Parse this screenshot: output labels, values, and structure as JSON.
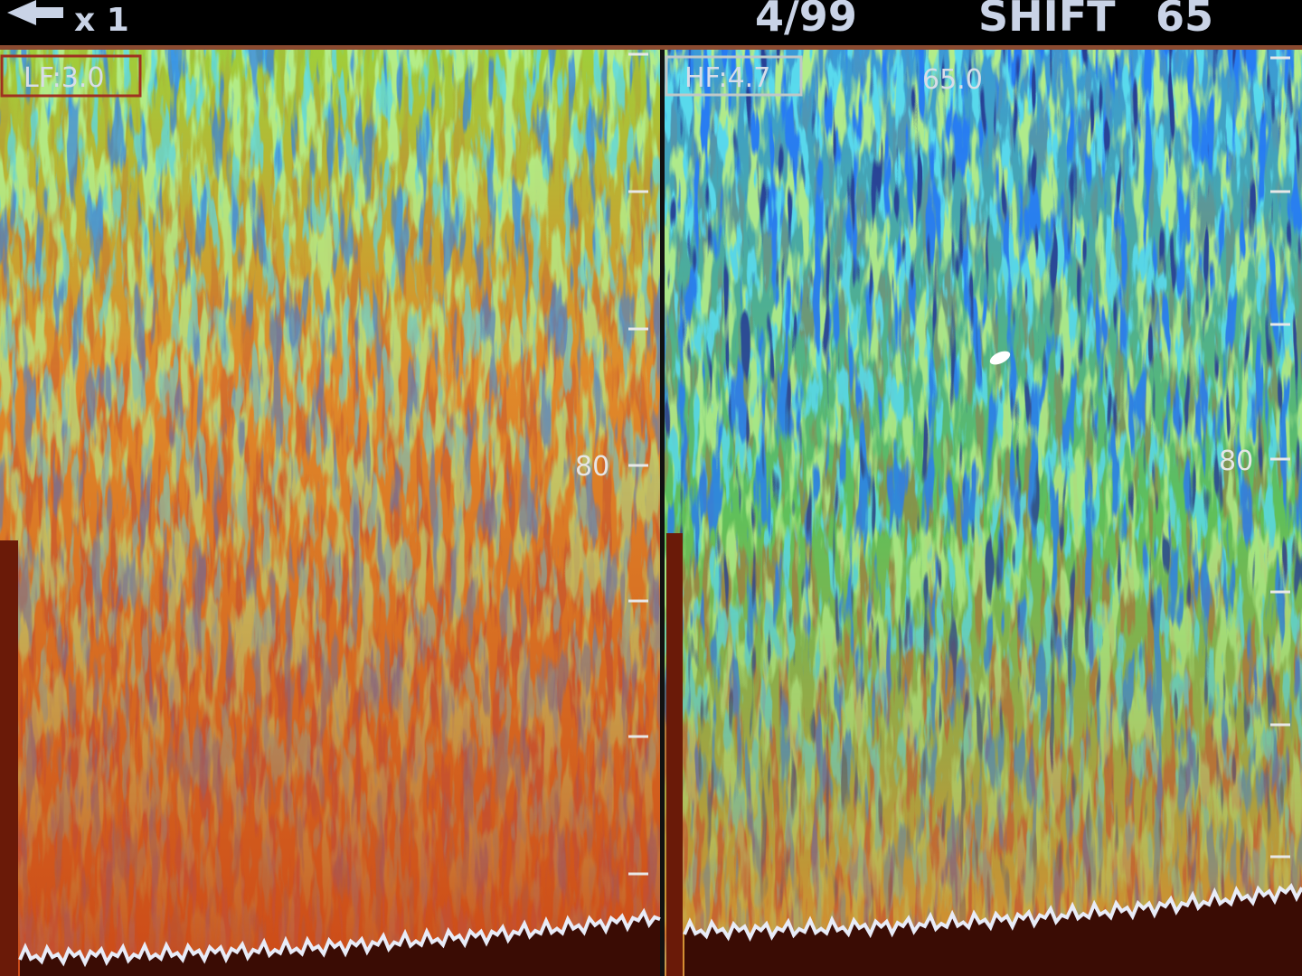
{
  "header": {
    "zoom": "x 1",
    "page": "4/99",
    "shift_label": "SHIFT",
    "shift_value": "65"
  },
  "panels": [
    {
      "label": "LF:3.0",
      "depth_label": "80"
    },
    {
      "label": "HF:4.7",
      "marker": "65.0",
      "depth_label": "80"
    }
  ]
}
